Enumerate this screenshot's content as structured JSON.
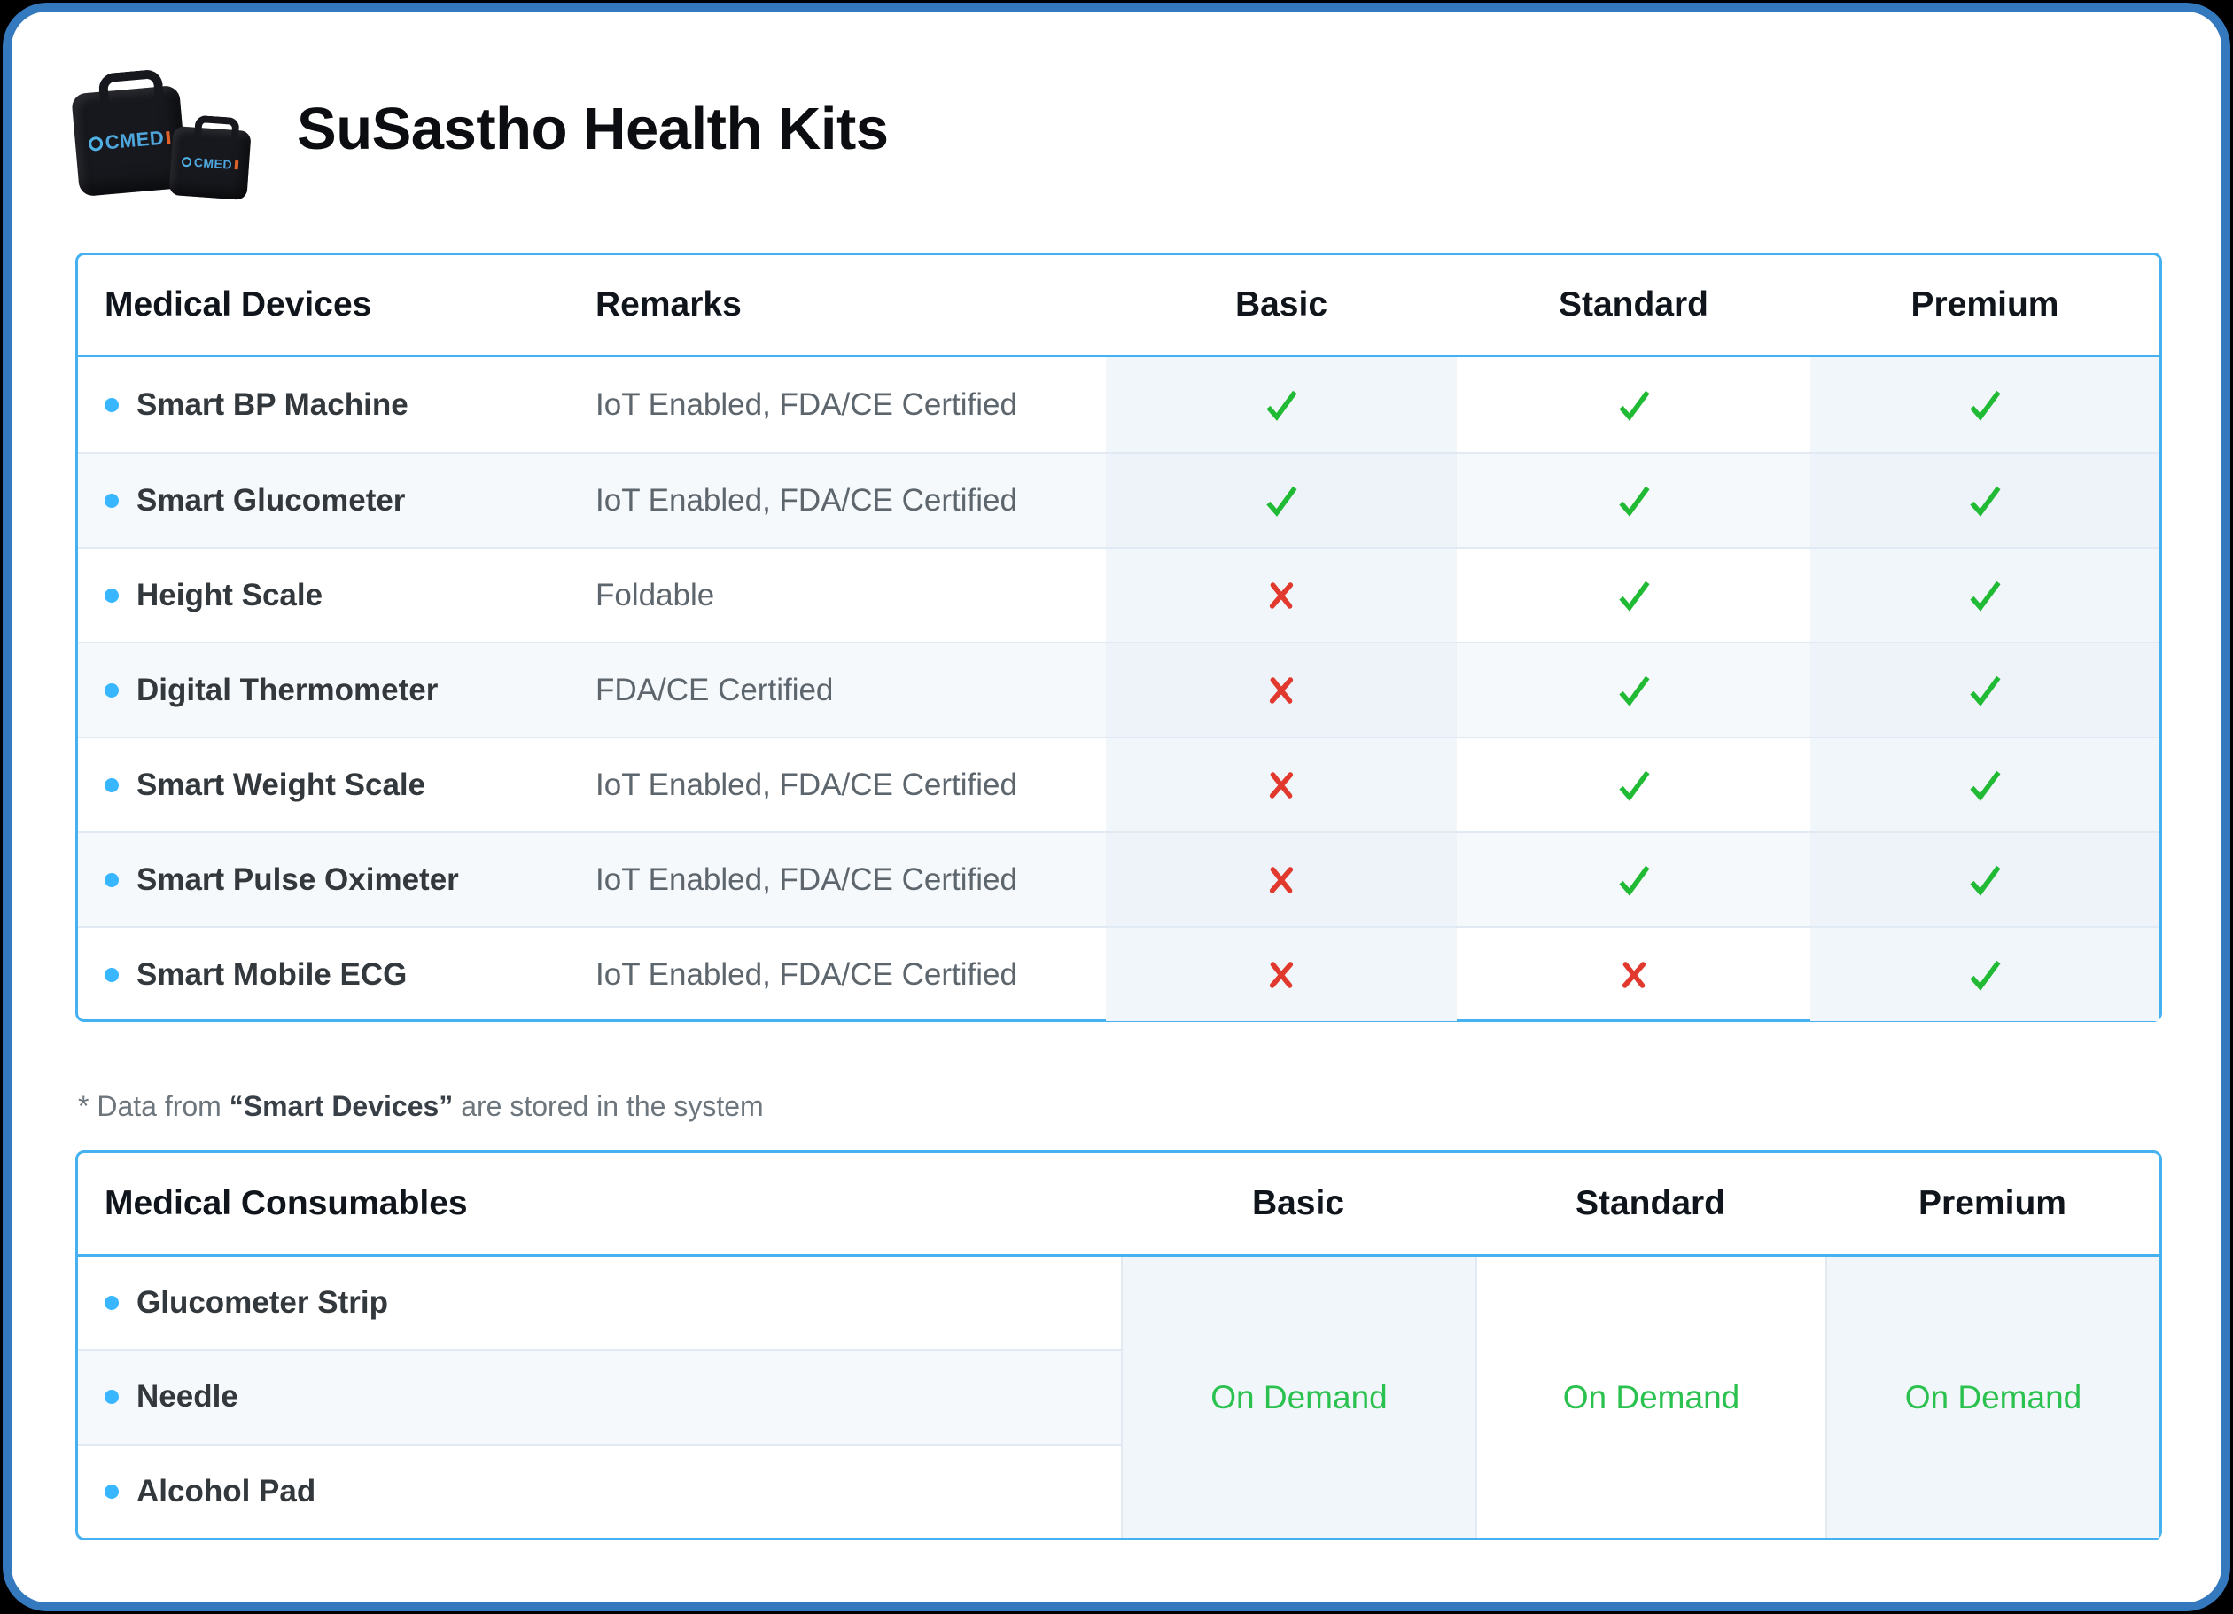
{
  "page": {
    "title": "SuSastho Health Kits",
    "footnote": {
      "prefix": "* Data from ",
      "emphasis": "“Smart Devices”",
      "suffix": " are stored in the system"
    }
  },
  "logo": {
    "brand": "CMED",
    "description": "two black health kit carrying bags with CMED logo"
  },
  "colors": {
    "card_border": "#3478bd",
    "table_border": "#45b1f1",
    "bullet": "#38b6ff",
    "check": "#21ba34",
    "cross": "#e1392d",
    "on_demand": "#2bc14e",
    "row_stripe": "#f6f9fc",
    "col_tint": "#f1f6fb",
    "separator": "#e1eaf3",
    "header_text": "#10151c",
    "device_text": "#33383d",
    "remark_text": "#5d656d",
    "footnote_text": "#6d757d"
  },
  "devices_table": {
    "columns": {
      "devices": "Medical Devices",
      "remarks": "Remarks"
    },
    "tiers": [
      "Basic",
      "Standard",
      "Premium"
    ],
    "rows": [
      {
        "name": "Smart BP Machine",
        "remark": "IoT Enabled, FDA/CE Certified",
        "availability": [
          true,
          true,
          true
        ]
      },
      {
        "name": "Smart Glucometer",
        "remark": "IoT Enabled, FDA/CE Certified",
        "availability": [
          true,
          true,
          true
        ]
      },
      {
        "name": "Height Scale",
        "remark": "Foldable",
        "availability": [
          false,
          true,
          true
        ]
      },
      {
        "name": "Digital Thermometer",
        "remark": "FDA/CE Certified",
        "availability": [
          false,
          true,
          true
        ]
      },
      {
        "name": "Smart Weight Scale",
        "remark": "IoT Enabled, FDA/CE Certified",
        "availability": [
          false,
          true,
          true
        ]
      },
      {
        "name": "Smart Pulse Oximeter",
        "remark": "IoT Enabled, FDA/CE Certified",
        "availability": [
          false,
          true,
          true
        ]
      },
      {
        "name": "Smart Mobile ECG",
        "remark": "IoT Enabled, FDA/CE Certified",
        "availability": [
          false,
          false,
          true
        ]
      }
    ]
  },
  "consumables_table": {
    "header": "Medical Consumables",
    "tiers": [
      "Basic",
      "Standard",
      "Premium"
    ],
    "items": [
      "Glucometer Strip",
      "Needle",
      "Alcohol Pad"
    ],
    "availability": [
      "On Demand",
      "On Demand",
      "On Demand"
    ]
  }
}
